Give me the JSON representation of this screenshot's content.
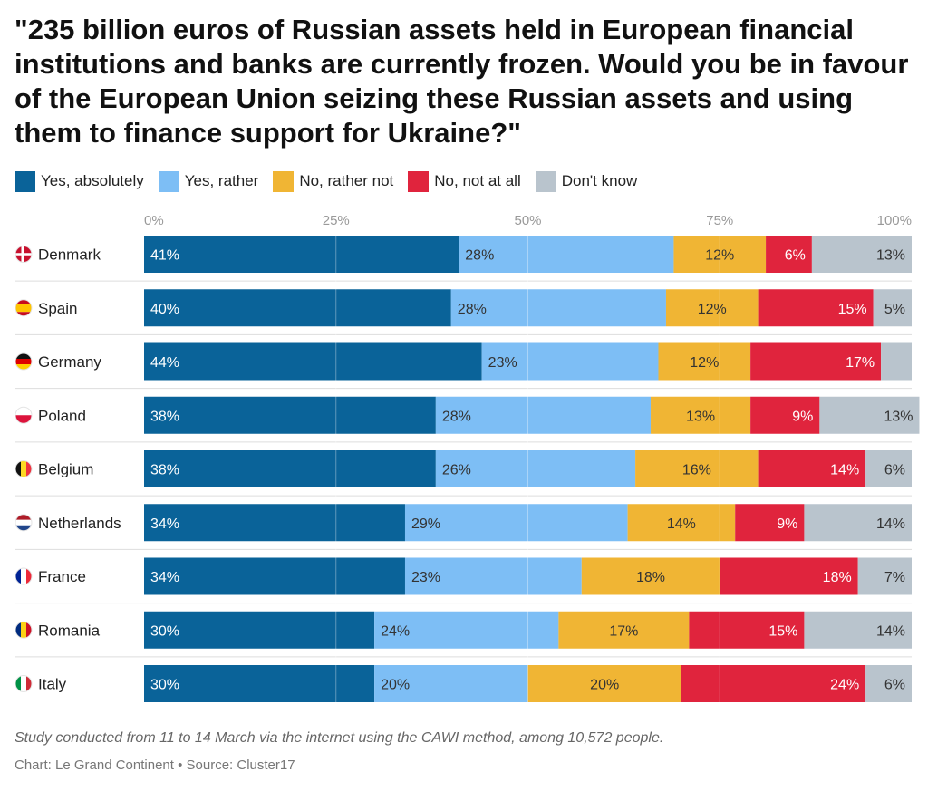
{
  "chart_data": {
    "type": "bar",
    "stacked": true,
    "orientation": "horizontal",
    "normalized": true,
    "title": "\"235 billion euros of Russian assets held in European financial institutions and banks are currently frozen. Would you be in favour of the European Union seizing these Russian assets and using them to finance support for Ukraine?\"",
    "xlim": [
      0,
      100
    ],
    "x_ticks": [
      "0%",
      "25%",
      "50%",
      "75%",
      "100%"
    ],
    "grid": true,
    "legend_position": "top-left",
    "categories": [
      "Denmark",
      "Spain",
      "Germany",
      "Poland",
      "Belgium",
      "Netherlands",
      "France",
      "Romania",
      "Italy"
    ],
    "series": [
      {
        "name": "Yes, absolutely",
        "color": "#0a6399",
        "label_color": "#ffffff",
        "values": [
          41,
          40,
          44,
          38,
          38,
          34,
          34,
          30,
          30
        ],
        "labels": [
          "41%",
          "40%",
          "44%",
          "38%",
          "38%",
          "34%",
          "34%",
          "30%",
          "30%"
        ]
      },
      {
        "name": "Yes, rather",
        "color": "#7dbef5",
        "label_color": "#333333",
        "values": [
          28,
          28,
          23,
          28,
          26,
          29,
          23,
          24,
          20
        ],
        "labels": [
          "28%",
          "28%",
          "23%",
          "28%",
          "26%",
          "29%",
          "23%",
          "24%",
          "20%"
        ]
      },
      {
        "name": "No, rather not",
        "color": "#f0b534",
        "label_color": "#333333",
        "values": [
          12,
          12,
          12,
          13,
          16,
          14,
          18,
          17,
          20
        ],
        "labels": [
          "12%",
          "12%",
          "12%",
          "13%",
          "16%",
          "14%",
          "18%",
          "17%",
          "20%"
        ]
      },
      {
        "name": "No, not at all",
        "color": "#e0243d",
        "label_color": "#ffffff",
        "values": [
          6,
          15,
          17,
          9,
          14,
          9,
          18,
          15,
          24
        ],
        "labels": [
          "6%",
          "15%",
          "17%",
          "9%",
          "14%",
          "9%",
          "18%",
          "15%",
          "24%"
        ]
      },
      {
        "name": "Don't know",
        "color": "#b9c4cd",
        "label_color": "#333333",
        "values": [
          13,
          5,
          4,
          13,
          6,
          14,
          7,
          14,
          6
        ],
        "labels": [
          "13%",
          "5%",
          "",
          "13%",
          "6%",
          "14%",
          "7%",
          "14%",
          "6%"
        ]
      }
    ]
  },
  "flags": [
    {
      "country": "Denmark",
      "icon": "denmark-flag-icon",
      "colors": [
        "#c8102e",
        "#ffffff"
      ],
      "style": "nordic"
    },
    {
      "country": "Spain",
      "icon": "spain-flag-icon",
      "colors": [
        "#c60b1e",
        "#ffc400",
        "#c60b1e"
      ],
      "style": "h-bands-spain"
    },
    {
      "country": "Germany",
      "icon": "germany-flag-icon",
      "colors": [
        "#111111",
        "#dd0000",
        "#ffce00"
      ],
      "style": "h-tricolor"
    },
    {
      "country": "Poland",
      "icon": "poland-flag-icon",
      "colors": [
        "#ffffff",
        "#dc143c"
      ],
      "style": "h-bicolor"
    },
    {
      "country": "Belgium",
      "icon": "belgium-flag-icon",
      "colors": [
        "#111111",
        "#fdda24",
        "#ef3340"
      ],
      "style": "v-tricolor"
    },
    {
      "country": "Netherlands",
      "icon": "netherlands-flag-icon",
      "colors": [
        "#ae1c28",
        "#ffffff",
        "#21468b"
      ],
      "style": "h-tricolor"
    },
    {
      "country": "France",
      "icon": "france-flag-icon",
      "colors": [
        "#002395",
        "#ffffff",
        "#ed2939"
      ],
      "style": "v-tricolor"
    },
    {
      "country": "Romania",
      "icon": "romania-flag-icon",
      "colors": [
        "#002b7f",
        "#fcd116",
        "#ce1126"
      ],
      "style": "v-tricolor"
    },
    {
      "country": "Italy",
      "icon": "italy-flag-icon",
      "colors": [
        "#009246",
        "#ffffff",
        "#ce2b37"
      ],
      "style": "v-tricolor"
    }
  ],
  "footer": {
    "note": "Study conducted from 11 to 14 March via the internet using the CAWI method, among 10,572 people.",
    "credit": "Chart: Le Grand Continent • Source: Cluster17"
  }
}
